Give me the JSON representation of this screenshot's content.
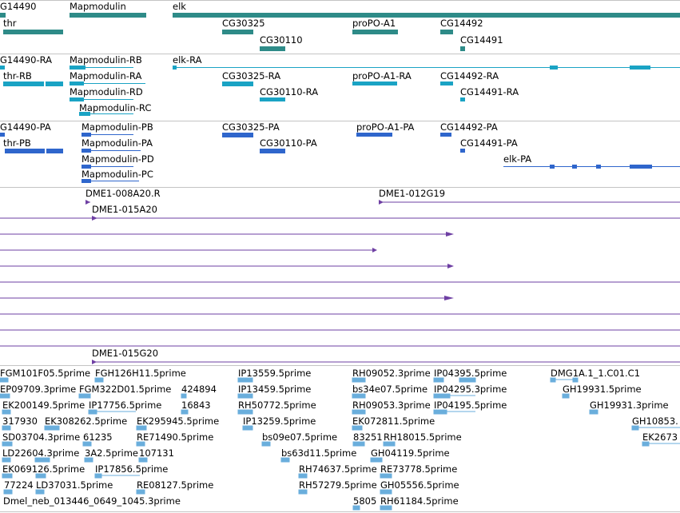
{
  "colors": {
    "gene": "#2e8b88",
    "rna": "#1aa3c4",
    "protein": "#2f66cc",
    "clone": "#6e3fa3",
    "est": "#6aaedc",
    "separator": "#c4c4c4"
  },
  "tracks": {
    "gene": {
      "labels": [
        "G14490",
        "Mapmodulin",
        "elk",
        "thr",
        "CG30325",
        "proPO-A1",
        "CG14492",
        "CG30110",
        "CG14491"
      ]
    },
    "rna": {
      "labels": [
        "G14490-RA",
        "Mapmodulin-RB",
        "elk-RA",
        "thr-RB",
        "Mapmodulin-RA",
        "CG30325-RA",
        "proPO-A1-RA",
        "CG14492-RA",
        "Mapmodulin-RD",
        "CG30110-RA",
        "CG14491-RA",
        "Mapmodulin-RC"
      ]
    },
    "protein": {
      "labels": [
        "G14490-PA",
        "Mapmodulin-PB",
        "CG30325-PA",
        "proPO-A1-PA",
        "CG14492-PA",
        "thr-PB",
        "Mapmodulin-PA",
        "CG30110-PA",
        "CG14491-PA",
        "Mapmodulin-PD",
        "elk-PA",
        "Mapmodulin-PC"
      ]
    },
    "clone": {
      "labels": [
        "DME1-008A20.R",
        "DME1-012G19",
        "DME1-015A20",
        "DME1-015G20"
      ]
    },
    "est": {
      "labels": [
        "FGM101F05.5prime",
        "FGH126H11.5prime",
        "IP13559.5prime",
        "RH09052.3prime",
        "IP04395.5prime",
        "DMG1A.1_1.C01.C1",
        "EP09709.3prime",
        "FGM322D01.5prime",
        "424894",
        "IP13459.5prime",
        "bs34e07.5prime",
        "IP04295.3prime",
        "GH19931.5prime",
        "EK200149.5prime",
        "IP17756.5prime",
        "16843",
        "RH50772.5prime",
        "RH09053.3prime",
        "IP04195.5prime",
        "GH19931.3prime",
        "317930",
        "EK308262.5prime",
        "EK295945.5prime",
        "IP13259.5prime",
        "EK072811.5prime",
        "GH10853.",
        "SD03704.3prime",
        "61235",
        "RE71490.5prime",
        "bs09e07.5prime",
        "83251",
        "RH18015.5prime",
        "EK2673",
        "LD22604.3prime",
        "3A2.5prime",
        "107131",
        "bs63d11.5prime",
        "GH04119.5prime",
        "EK069126.5prime",
        "IP17856.5prime",
        "RH74637.5prime",
        "RE73778.5prime",
        "77224",
        "LD37031.5prime",
        "RE08127.5prime",
        "RH57279.5prime",
        "GH05556.5prime",
        "Dmel_neb_013446_0649_1045.3prime",
        "5805",
        "RH61184.5prime"
      ]
    }
  }
}
